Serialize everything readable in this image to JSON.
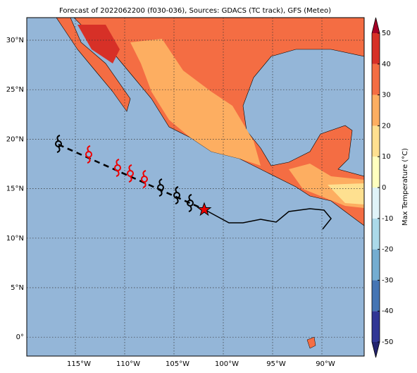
{
  "title": "Forecast of 2022062200 (f030-036), Sources: GDACS (TC track), GFS (Meteo)",
  "lat_labels": [
    "30°N",
    "25°N",
    "20°N",
    "15°N",
    "10°N",
    "5°N",
    "0°"
  ],
  "lon_labels": [
    "115°W",
    "110°W",
    "105°W",
    "100°W",
    "95°W",
    "90°W"
  ],
  "colorbar": {
    "label": "Max Temperature (°C)",
    "ticks": [
      -50,
      -40,
      -30,
      -20,
      -10,
      0,
      10,
      20,
      30,
      40,
      50
    ],
    "colors": [
      "#313695",
      "#4575b4",
      "#74add1",
      "#abd9e9",
      "#e0f3f8",
      "#ffffbf",
      "#fee090",
      "#fdae61",
      "#f46d43",
      "#d73027"
    ],
    "under": "#23236e",
    "over": "#a50026"
  }
}
